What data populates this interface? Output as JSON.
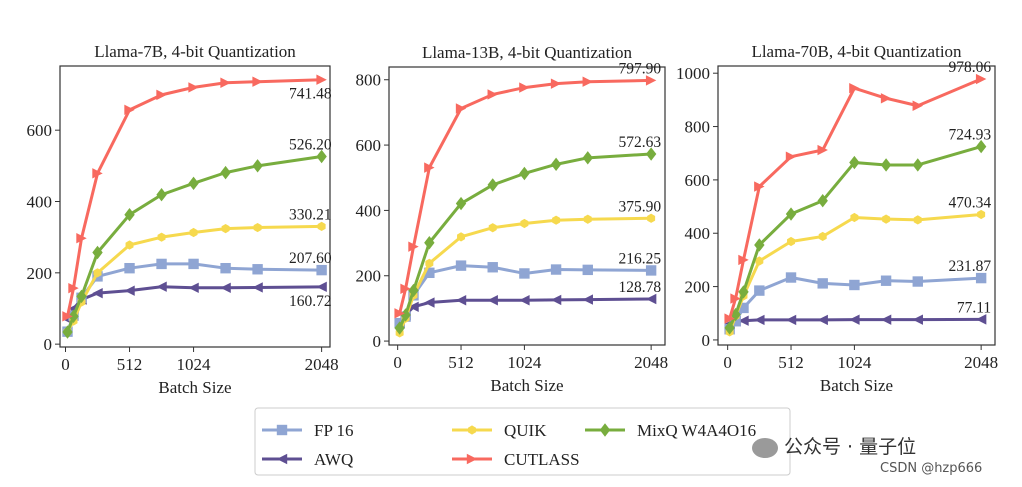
{
  "colors": {
    "FP 16": "#8fa5d3",
    "AWQ": "#5e4f92",
    "QUIK": "#f6d94e",
    "CUTLASS": "#f8695f",
    "MixQ W4A4O16": "#78ad3e"
  },
  "markers": {
    "FP 16": "square",
    "AWQ": "triangle-left",
    "QUIK": "hexagon",
    "CUTLASS": "triangle-right",
    "MixQ W4A4O16": "diamond"
  },
  "legend": {
    "position": "bottom-center",
    "items": [
      "FP 16",
      "QUIK",
      "MixQ W4A4O16",
      "AWQ",
      "CUTLASS"
    ]
  },
  "watermark": {
    "wechat": "公众号 · 量子位",
    "csdn": "CSDN @hzp666"
  },
  "chart_data": [
    {
      "type": "line",
      "title": "Llama-7B, 4-bit Quantization",
      "xlabel": "Batch Size",
      "ylabel": "",
      "xticks": [
        0,
        512,
        1024,
        2048
      ],
      "yticks": [
        0,
        200,
        400,
        600
      ],
      "xlim": [
        -44,
        2115
      ],
      "ylim": [
        -8,
        780
      ],
      "grid": false,
      "x": [
        16,
        64,
        128,
        256,
        512,
        768,
        1024,
        1280,
        1536,
        2048
      ],
      "series": [
        {
          "name": "CUTLASS",
          "values": [
            78,
            157,
            297,
            479,
            657,
            699,
            720,
            733,
            736,
            741.48
          ],
          "end_label": "741.48"
        },
        {
          "name": "MixQ W4A4O16",
          "values": [
            34,
            78,
            134,
            257,
            363,
            419,
            451,
            481,
            500,
            526.2
          ],
          "end_label": "526.20"
        },
        {
          "name": "QUIK",
          "values": [
            35,
            65,
            118,
            200,
            278,
            300,
            313,
            324,
            327,
            330.21
          ],
          "end_label": "330.21"
        },
        {
          "name": "FP 16",
          "values": [
            35,
            80,
            130,
            190,
            213,
            225,
            225,
            213,
            210,
            207.6
          ],
          "end_label": "207.60"
        },
        {
          "name": "AWQ",
          "values": [
            70,
            100,
            125,
            143,
            150,
            161,
            158,
            158,
            159,
            160.72
          ],
          "end_label": "160.72"
        }
      ]
    },
    {
      "type": "line",
      "title": "Llama-13B, 4-bit Quantization",
      "xlabel": "Batch Size",
      "ylabel": "",
      "xticks": [
        0,
        512,
        1024,
        2048
      ],
      "yticks": [
        0,
        200,
        400,
        600,
        800
      ],
      "xlim": [
        -70,
        2160
      ],
      "ylim": [
        -12,
        839
      ],
      "grid": false,
      "x": [
        16,
        64,
        128,
        256,
        512,
        768,
        1024,
        1280,
        1536,
        2048
      ],
      "series": [
        {
          "name": "CUTLASS",
          "values": [
            85,
            160,
            289,
            531,
            712,
            755,
            776,
            788,
            794,
            797.9
          ],
          "end_label": "797.90"
        },
        {
          "name": "MixQ W4A4O16",
          "values": [
            40,
            80,
            155,
            301,
            421,
            478,
            513,
            541,
            561,
            572.63
          ],
          "end_label": "572.63"
        },
        {
          "name": "QUIK",
          "values": [
            25,
            70,
            140,
            238,
            319,
            347,
            360,
            370,
            373,
            375.9
          ],
          "end_label": "375.90"
        },
        {
          "name": "FP 16",
          "values": [
            55,
            75,
            140,
            209,
            231,
            226,
            207,
            219,
            218,
            216.25
          ],
          "end_label": "216.25"
        },
        {
          "name": "AWQ",
          "values": [
            55,
            80,
            105,
            118,
            125,
            125,
            125,
            126,
            127,
            128.78
          ],
          "end_label": "128.78"
        }
      ]
    },
    {
      "type": "line",
      "title": "Llama-70B, 4-bit Quantization",
      "xlabel": "Batch Size",
      "ylabel": "",
      "xticks": [
        0,
        512,
        1024,
        2048
      ],
      "yticks": [
        0,
        200,
        400,
        600,
        800,
        1000
      ],
      "xlim": [
        -78,
        2160
      ],
      "ylim": [
        -19,
        1027
      ],
      "grid": false,
      "x": [
        16,
        64,
        128,
        256,
        512,
        768,
        1024,
        1280,
        1536,
        2048
      ],
      "series": [
        {
          "name": "CUTLASS",
          "values": [
            80,
            155,
            300,
            575,
            687,
            712,
            944,
            906,
            878,
            978.06
          ],
          "end_label": "978.06"
        },
        {
          "name": "MixQ W4A4O16",
          "values": [
            45,
            95,
            180,
            356,
            472,
            522,
            665,
            656,
            656,
            724.93
          ],
          "end_label": "724.93"
        },
        {
          "name": "QUIK",
          "values": [
            30,
            90,
            165,
            296,
            369,
            388,
            459,
            453,
            450,
            470.34
          ],
          "end_label": "470.34"
        },
        {
          "name": "FP 16",
          "values": [
            40,
            70,
            120,
            185,
            234,
            212,
            206,
            222,
            219,
            231.87
          ],
          "end_label": "231.87"
        },
        {
          "name": "AWQ",
          "values": [
            60,
            70,
            72,
            75,
            75,
            75,
            76,
            76,
            76,
            77.11
          ],
          "end_label": "77.11"
        }
      ]
    }
  ]
}
